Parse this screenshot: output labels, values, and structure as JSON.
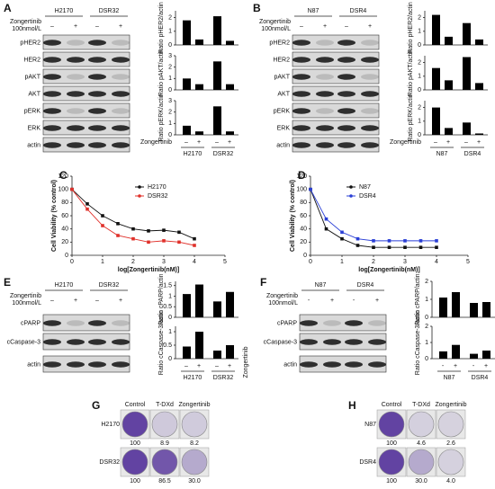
{
  "blot_panels": [
    {
      "label": "A",
      "lines": [
        "H2170",
        "DSR32"
      ],
      "treatment": [
        "Zongertinib",
        "100nmol/L"
      ],
      "signs": [
        "–",
        "+",
        "–",
        "+"
      ],
      "rows": [
        "pHER2",
        "HER2",
        "pAKT",
        "AKT",
        "pERK",
        "ERK",
        "actin"
      ],
      "charts": [
        {
          "ylabel": "Ratio pHER2/actin",
          "ylim": [
            0,
            2.5
          ],
          "yticks": [
            0,
            1,
            2
          ],
          "values": [
            1.8,
            0.4,
            2.1,
            0.3
          ]
        },
        {
          "ylabel": "Ratio pAKT/actin",
          "ylim": [
            0,
            3
          ],
          "yticks": [
            0,
            1,
            2,
            3
          ],
          "values": [
            1.0,
            0.5,
            2.5,
            0.5
          ]
        },
        {
          "ylabel": "Ratio pERK/actin",
          "ylim": [
            0,
            3
          ],
          "yticks": [
            0,
            1,
            2,
            3
          ],
          "values": [
            0.8,
            0.3,
            2.5,
            0.3
          ]
        }
      ],
      "chart_xlabel": "Zongertinib",
      "chart_signs": [
        "–",
        "+",
        "–",
        "+"
      ],
      "chart_groups": [
        "H2170",
        "DSR32"
      ]
    },
    {
      "label": "B",
      "lines": [
        "N87",
        "DSR4"
      ],
      "treatment": [
        "Zongertinib",
        "100nmol/L"
      ],
      "signs": [
        "–",
        "+",
        "–",
        "+"
      ],
      "rows": [
        "pHER2",
        "HER2",
        "pAKT",
        "AKT",
        "pERK",
        "ERK",
        "actin"
      ],
      "charts": [
        {
          "ylabel": "Ratio pHER2/actin",
          "ylim": [
            0,
            2.5
          ],
          "yticks": [
            0,
            1,
            2
          ],
          "values": [
            2.2,
            0.6,
            1.6,
            0.4
          ]
        },
        {
          "ylabel": "Ratio pAKT/actin",
          "ylim": [
            0,
            2.5
          ],
          "yticks": [
            0,
            1,
            2
          ],
          "values": [
            1.6,
            0.7,
            2.4,
            0.5
          ]
        },
        {
          "ylabel": "Ratio pERK/actin",
          "ylim": [
            0,
            2.5
          ],
          "yticks": [
            0,
            1,
            2
          ],
          "values": [
            2.0,
            0.5,
            0.9,
            0.1
          ]
        }
      ],
      "chart_xlabel": "Zongertinib",
      "chart_signs": [
        "–",
        "+",
        "–",
        "+"
      ],
      "chart_groups": [
        "N87",
        "DSR4"
      ]
    },
    {
      "label": "E",
      "lines": [
        "H2170",
        "DSR32"
      ],
      "treatment": [
        "Zongertinib",
        "100nmol/L"
      ],
      "signs": [
        "–",
        "+",
        "–",
        "+"
      ],
      "rows": [
        "cPARP",
        "cCaspase-3",
        "actin"
      ],
      "charts": [
        {
          "ylabel": "Ratio cPARP/actin",
          "ylim": [
            0,
            1.7
          ],
          "yticks": [
            0,
            0.5,
            1,
            1.5
          ],
          "values": [
            1.1,
            1.55,
            0.75,
            1.2
          ]
        },
        {
          "ylabel": "Ratio cCaspase-3/actin",
          "ylim": [
            0,
            1.2
          ],
          "yticks": [
            0,
            0.5,
            1
          ],
          "values": [
            0.45,
            1.0,
            0.3,
            0.5
          ]
        }
      ],
      "chart_xlabel": "Zongertinib",
      "chart_signs": [
        "–",
        "+",
        "–",
        "+"
      ],
      "chart_groups": [
        "H2170",
        "DSR32"
      ]
    },
    {
      "label": "F",
      "lines": [
        "N87",
        "DSR4"
      ],
      "treatment": [
        "Zongertinib",
        "100nmol/L"
      ],
      "signs": [
        "-",
        "+",
        "-",
        "+"
      ],
      "rows": [
        "cPARP",
        "cCaspase-3",
        "actin"
      ],
      "charts": [
        {
          "ylabel": "Ratio cPARP/actin",
          "ylim": [
            0,
            2
          ],
          "yticks": [
            0,
            1,
            2
          ],
          "values": [
            1.1,
            1.4,
            0.8,
            0.85
          ]
        },
        {
          "ylabel": "Ratio cCaspase-3/actin",
          "ylim": [
            0,
            2
          ],
          "yticks": [
            0,
            1,
            2
          ],
          "values": [
            0.45,
            0.85,
            0.3,
            0.5
          ]
        }
      ],
      "chart_xlabel": "Zongertinib",
      "chart_signs": [
        "-",
        "+",
        "-",
        "+"
      ],
      "chart_groups": [
        "N87",
        "DSR4"
      ]
    }
  ],
  "curve_panels": [
    {
      "label": "C",
      "xlabel": "log[Zongertinib(nM)]",
      "ylabel": "Cell Viability (% control)",
      "x": [
        0,
        0.5,
        1,
        1.5,
        2,
        2.5,
        3,
        3.5,
        4
      ],
      "xlim": [
        0,
        5
      ],
      "xticks": [
        0,
        1,
        2,
        3,
        4,
        5
      ],
      "ylim": [
        0,
        120
      ],
      "yticks": [
        0,
        20,
        40,
        60,
        80,
        100,
        120
      ],
      "series": [
        {
          "name": "H2170",
          "color": "#111111",
          "values": [
            100,
            78,
            60,
            48,
            40,
            37,
            38,
            35,
            25
          ]
        },
        {
          "name": "DSR32",
          "color": "#e0302a",
          "values": [
            100,
            70,
            45,
            30,
            25,
            20,
            22,
            20,
            15
          ]
        }
      ]
    },
    {
      "label": "D",
      "xlabel": "log[Zongertinib(nM)]",
      "ylabel": "Cell Viability (% control)",
      "x": [
        0,
        0.5,
        1,
        1.5,
        2,
        2.5,
        3,
        3.5,
        4
      ],
      "xlim": [
        0,
        5
      ],
      "xticks": [
        0,
        1,
        2,
        3,
        4,
        5
      ],
      "ylim": [
        0,
        120
      ],
      "yticks": [
        0,
        20,
        40,
        60,
        80,
        100,
        120
      ],
      "series": [
        {
          "name": "N87",
          "color": "#111111",
          "values": [
            100,
            40,
            25,
            15,
            12,
            12,
            12,
            12,
            12
          ]
        },
        {
          "name": "DSR4",
          "color": "#2a3fd6",
          "values": [
            100,
            55,
            35,
            25,
            22,
            22,
            22,
            22,
            22
          ]
        }
      ]
    }
  ],
  "colony_panels": [
    {
      "label": "G",
      "columns": [
        "Control",
        "T-DXd",
        "Zongertinib"
      ],
      "rows": [
        {
          "name": "H2170",
          "values": [
            100,
            8.9,
            8.2
          ],
          "value_labels": [
            "100",
            "8.9",
            "8.2"
          ]
        },
        {
          "name": "DSR32",
          "values": [
            100,
            86.5,
            30.0
          ],
          "value_labels": [
            "100",
            "86.5",
            "30.0"
          ]
        }
      ]
    },
    {
      "label": "H",
      "columns": [
        "Control",
        "T-DXd",
        "Zongertinib"
      ],
      "rows": [
        {
          "name": "N87",
          "values": [
            100,
            4.6,
            2.6
          ],
          "value_labels": [
            "100",
            "4.6",
            "2.6"
          ]
        },
        {
          "name": "DSR4",
          "values": [
            100,
            30.0,
            4.0
          ],
          "value_labels": [
            "100",
            "30.0",
            "4.0"
          ]
        }
      ]
    }
  ]
}
